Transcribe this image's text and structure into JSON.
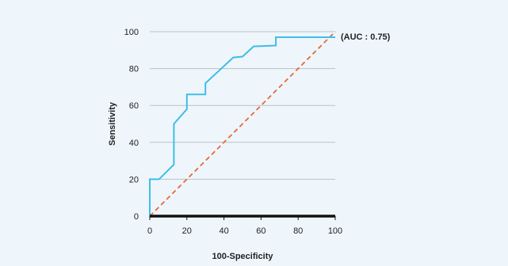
{
  "chart_data": {
    "type": "line",
    "title": "",
    "xlabel": "100-Specificity",
    "ylabel": "Sensitivity",
    "xlim": [
      0,
      100
    ],
    "ylim": [
      0,
      100
    ],
    "xticks": [
      "0",
      "20",
      "40",
      "60",
      "80",
      "100"
    ],
    "yticks": [
      "0",
      "20",
      "40",
      "60",
      "80",
      "100"
    ],
    "grid": "horizontal",
    "legend": "none",
    "annotations": [
      {
        "text": "(AUC : 0.75)",
        "x": 100,
        "y": 97
      }
    ],
    "series": [
      {
        "style": "solid",
        "color": "#3fbde9",
        "x": [
          0,
          0,
          5,
          13,
          13,
          20,
          20,
          30,
          30,
          45,
          50,
          56,
          68,
          68,
          100
        ],
        "y": [
          0,
          20,
          20,
          28,
          50,
          58,
          66,
          66,
          72,
          86,
          86.5,
          92,
          92.5,
          97,
          97
        ]
      },
      {
        "style": "dashed",
        "color": "#e8683a",
        "x": [
          0,
          100
        ],
        "y": [
          0,
          100
        ]
      }
    ],
    "axis_color": "#111111",
    "grid_color": "#b9c2c8",
    "background": "#eef6fb"
  }
}
